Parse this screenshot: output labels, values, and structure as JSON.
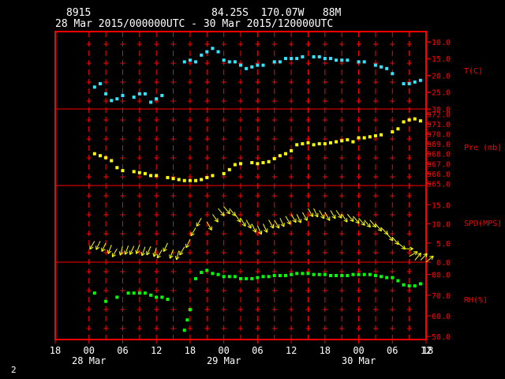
{
  "header": {
    "station": "8915",
    "location": "84.25S  170.07W   88M",
    "period": "28 Mar 2015/000000UTC - 30 Mar 2015/120000UTC"
  },
  "footer": {
    "page_number": "2"
  },
  "colors": {
    "background": "#000000",
    "frame": "#ff0000",
    "axis_text": "#ff0000",
    "temperature": "#33e5ff",
    "pressure": "#ffff00",
    "wind": "#ffff00",
    "humidity": "#00ff00"
  },
  "chart_data": {
    "type": "scatter",
    "x_axis": {
      "range": [
        -6,
        60
      ],
      "unit": "hours since 28 Mar 2015 00 UTC",
      "tick_labels": [
        "18",
        "00",
        "06",
        "12",
        "18",
        "00",
        "06",
        "12",
        "18",
        "00",
        "06",
        "12",
        "18"
      ],
      "tick_hours": [
        -6,
        0,
        6,
        12,
        18,
        24,
        30,
        36,
        42,
        48,
        54,
        60,
        66
      ],
      "day_labels": [
        {
          "hour": 0,
          "label": "28 Mar"
        },
        {
          "hour": 24,
          "label": "29 Mar"
        },
        {
          "hour": 48,
          "label": "30 Mar"
        }
      ]
    },
    "panels": [
      {
        "name": "T(C)",
        "ylim": [
          -30,
          -5
        ],
        "tick_labels": [
          "-10.0",
          "-15.0",
          "-20.0",
          "-25.0",
          "-30.0"
        ],
        "tick_values": [
          -10,
          -15,
          -20,
          -25,
          -30
        ],
        "x": [
          1,
          2,
          3,
          4,
          5,
          6,
          8,
          9,
          10,
          11,
          12,
          13,
          17,
          18,
          19,
          20,
          21,
          22,
          23,
          24,
          25,
          26,
          27,
          28,
          29,
          30,
          31,
          33,
          34,
          35,
          36,
          37,
          38,
          40,
          41,
          42,
          43,
          44,
          45,
          46,
          48,
          49,
          51,
          52,
          53,
          54,
          56,
          57,
          58,
          59
        ],
        "y": [
          -23.5,
          -22.5,
          -25.5,
          -27.5,
          -27,
          -26,
          -26.5,
          -25.5,
          -25.5,
          -28,
          -27,
          -26,
          -16,
          -15.5,
          -16,
          -14,
          -13,
          -12,
          -13,
          -15.5,
          -16,
          -16,
          -17,
          -18,
          -17.5,
          -17,
          -17,
          -16,
          -16,
          -15,
          -15,
          -15,
          -14.5,
          -14.5,
          -14.5,
          -15,
          -15,
          -15.5,
          -15.5,
          -15.5,
          -16,
          -16,
          -17,
          -17.5,
          -18,
          -19.5,
          -22.5,
          -22.5,
          -22,
          -21.5
        ]
      },
      {
        "name": "Pre (mb)",
        "ylim": [
          965,
          972
        ],
        "tick_labels": [
          "972.0",
          "971.0",
          "970.0",
          "969.0",
          "968.0",
          "967.0",
          "966.0",
          "965.0"
        ],
        "tick_values": [
          972,
          971,
          970,
          969,
          968,
          967,
          966,
          965
        ],
        "x": [
          1,
          2,
          3,
          4,
          5,
          6,
          8,
          9,
          10,
          11,
          12,
          14,
          15,
          16,
          17,
          18,
          19,
          20,
          21,
          22,
          24,
          25,
          26,
          27,
          29,
          30,
          31,
          32,
          33,
          34,
          35,
          36,
          37,
          38,
          39,
          40,
          41,
          42,
          43,
          44,
          45,
          46,
          47,
          48,
          49,
          50,
          51,
          52,
          54,
          55,
          56,
          57,
          58,
          59
        ],
        "y": [
          968,
          967.8,
          967.6,
          967.3,
          966.6,
          966.3,
          966.2,
          966.1,
          966,
          965.8,
          965.8,
          965.6,
          965.5,
          965.4,
          965.3,
          965.3,
          965.3,
          965.4,
          965.6,
          965.8,
          966,
          966.4,
          966.9,
          967,
          967.1,
          967,
          967.1,
          967.2,
          967.5,
          967.8,
          968,
          968.3,
          968.9,
          969,
          969.1,
          968.9,
          969,
          969,
          969.1,
          969.2,
          969.3,
          969.4,
          969.2,
          969.6,
          969.6,
          969.7,
          969.8,
          969.9,
          970.2,
          970.5,
          971.2,
          971.4,
          971.5,
          971.3
        ]
      },
      {
        "name": "SPD(MPS)",
        "ylim": [
          0,
          20
        ],
        "tick_labels": [
          "15.0",
          "10.0",
          "5.0",
          "0.0"
        ],
        "tick_values": [
          15,
          10,
          5,
          0
        ],
        "x": [
          1,
          2,
          3,
          4,
          5,
          6,
          7,
          8,
          9,
          10,
          11,
          12,
          13,
          14,
          15,
          16,
          17,
          18,
          19,
          20,
          21,
          22,
          23,
          24,
          25,
          26,
          27,
          28,
          29,
          30,
          31,
          32,
          33,
          34,
          35,
          36,
          37,
          38,
          39,
          40,
          41,
          42,
          43,
          44,
          45,
          46,
          47,
          48,
          49,
          50,
          51,
          52,
          53,
          54,
          55,
          56,
          57,
          58,
          59,
          60
        ],
        "y": [
          5.5,
          5.5,
          5,
          4.5,
          3.5,
          4.2,
          4.3,
          4.2,
          4.5,
          4,
          4.1,
          3.8,
          3.2,
          5,
          3.3,
          3,
          4,
          6,
          9,
          11.5,
          10.5,
          12.5,
          14,
          14.5,
          14,
          12.5,
          11.5,
          11,
          10,
          9.5,
          10,
          11,
          11,
          11.5,
          12,
          12.5,
          12.5,
          13,
          14,
          14,
          13.5,
          13,
          13.5,
          13.5,
          12.5,
          12.5,
          12,
          11.5,
          11,
          11,
          10,
          9,
          7.5,
          6.5,
          5,
          3.5,
          1.5,
          0.5,
          0.5,
          0
        ],
        "direction_deg": [
          210,
          205,
          205,
          200,
          210,
          195,
          200,
          205,
          200,
          200,
          205,
          195,
          210,
          205,
          200,
          195,
          210,
          205,
          210,
          210,
          150,
          145,
          140,
          140,
          140,
          145,
          150,
          150,
          155,
          155,
          155,
          150,
          150,
          155,
          150,
          150,
          155,
          150,
          150,
          155,
          150,
          150,
          150,
          145,
          145,
          140,
          140,
          140,
          140,
          140,
          140,
          135,
          140,
          140,
          130,
          90,
          60,
          40,
          45,
          50
        ]
      },
      {
        "name": "RH(%)",
        "ylim": [
          50,
          85
        ],
        "tick_labels": [
          "80.0",
          "70.0",
          "60.0",
          "50.0"
        ],
        "tick_values": [
          80,
          70,
          60,
          50
        ],
        "x": [
          1,
          3,
          5,
          7,
          8,
          9,
          10,
          11,
          12,
          13,
          14,
          17,
          17.5,
          18,
          19,
          20,
          21,
          22,
          23,
          24,
          25,
          26,
          27,
          28,
          29,
          30,
          31,
          32,
          33,
          34,
          35,
          36,
          37,
          38,
          39,
          40,
          41,
          42,
          43,
          44,
          45,
          46,
          47,
          48,
          49,
          50,
          51,
          52,
          53,
          54,
          55,
          56,
          57,
          58,
          59
        ],
        "y": [
          71,
          67,
          69,
          71,
          71,
          71,
          71,
          70,
          69,
          69,
          68,
          53,
          58,
          63,
          78,
          81,
          82,
          80.5,
          80,
          79,
          79,
          79,
          78,
          78,
          78,
          78.5,
          79,
          79,
          79.5,
          79.5,
          79.5,
          80,
          80.5,
          80.5,
          80.5,
          80,
          80,
          80,
          79.5,
          79.5,
          79.5,
          79.5,
          80,
          80,
          80,
          80,
          79.5,
          79,
          78.5,
          78.5,
          77,
          75,
          74.5,
          74.5,
          75.5
        ]
      }
    ]
  }
}
